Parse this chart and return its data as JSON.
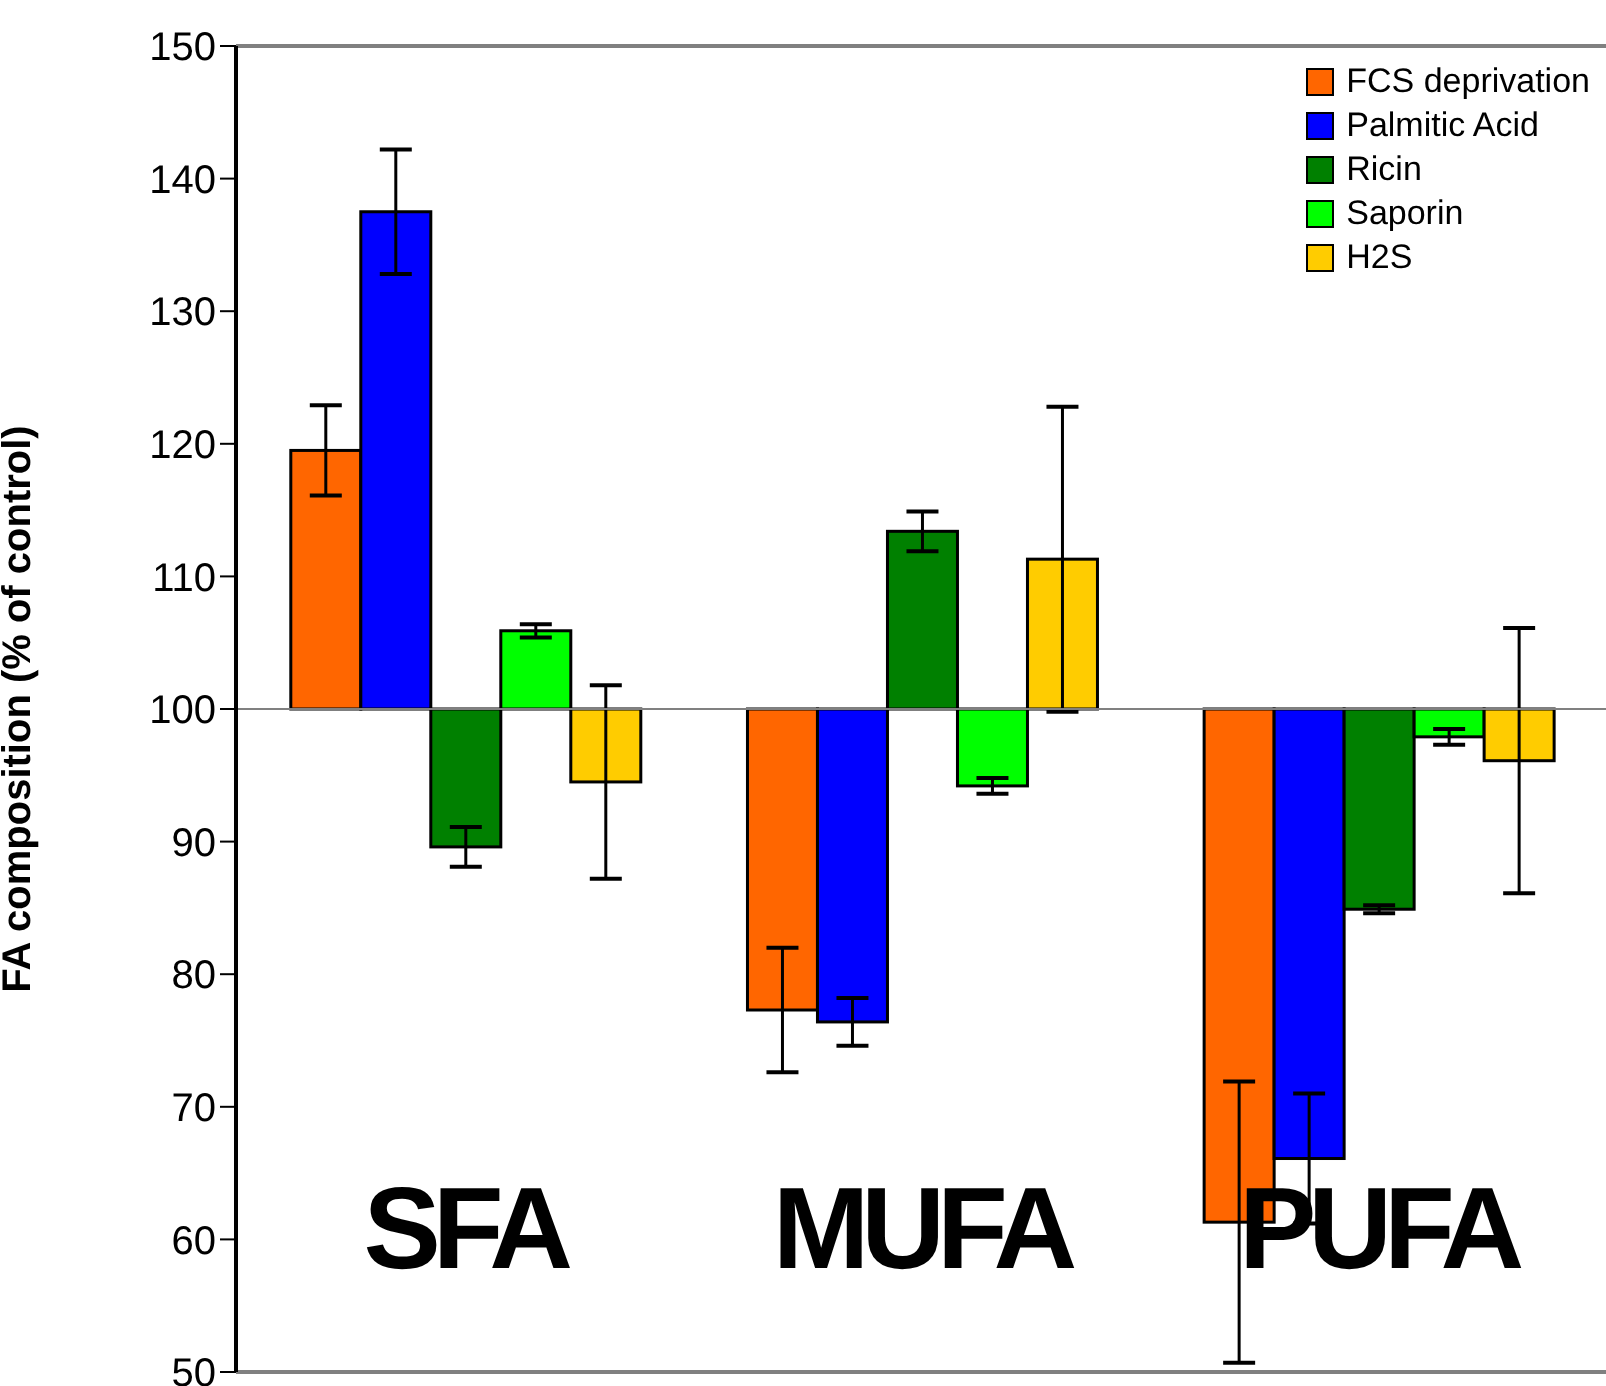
{
  "chart_data": {
    "type": "bar",
    "ylabel": "FA composition (% of control)",
    "categories": [
      "SFA",
      "MUFA",
      "PUFA"
    ],
    "series": [
      {
        "name": "FCS deprivation",
        "color": "#ff6600",
        "base": [
          100,
          100,
          100
        ],
        "values": [
          19.5,
          -22.7,
          -38.7
        ],
        "errors": [
          3.4,
          4.7,
          10.6
        ]
      },
      {
        "name": "Palmitic Acid",
        "color": "#0000ff",
        "base": [
          100,
          100,
          100
        ],
        "values": [
          37.5,
          -23.6,
          -33.9
        ],
        "errors": [
          4.7,
          1.8,
          4.9
        ]
      },
      {
        "name": "Ricin",
        "color": "#008000",
        "base": [
          100,
          100,
          100
        ],
        "values": [
          -10.4,
          13.4,
          -15.1
        ],
        "errors": [
          1.5,
          1.5,
          0.3
        ]
      },
      {
        "name": "Saporin",
        "color": "#00ff00",
        "base": [
          100,
          100,
          100
        ],
        "values": [
          5.9,
          -5.8,
          -2.1
        ],
        "errors": [
          0.5,
          0.6,
          0.6
        ]
      },
      {
        "name": "H2S",
        "color": "#ffcc00",
        "base": [
          100,
          100,
          100
        ],
        "values": [
          -5.5,
          11.3,
          -3.9
        ],
        "errors": [
          7.3,
          11.5,
          10
        ]
      }
    ],
    "ref_lines": [
      {
        "axis": "y",
        "value": 100,
        "color": "#808080"
      }
    ],
    "ylim": [
      50,
      150
    ],
    "yticks": [
      50,
      60,
      70,
      80,
      90,
      100,
      110,
      120,
      130,
      140,
      150
    ],
    "grid": false,
    "legend": "top right"
  }
}
